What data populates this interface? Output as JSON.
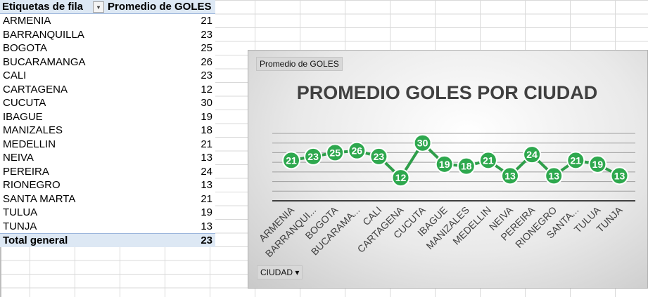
{
  "pivot": {
    "header_rows": "Etiquetas de fila",
    "header_values": "Promedio de GOLES",
    "rows": [
      {
        "label": "ARMENIA",
        "value": "21"
      },
      {
        "label": "BARRANQUILLA",
        "value": "23"
      },
      {
        "label": "BOGOTA",
        "value": "25"
      },
      {
        "label": "BUCARAMANGA",
        "value": "26"
      },
      {
        "label": "CALI",
        "value": "23"
      },
      {
        "label": "CARTAGENA",
        "value": "12"
      },
      {
        "label": "CUCUTA",
        "value": "30"
      },
      {
        "label": "IBAGUE",
        "value": "19"
      },
      {
        "label": "MANIZALES",
        "value": "18"
      },
      {
        "label": "MEDELLIN",
        "value": "21"
      },
      {
        "label": "NEIVA",
        "value": "13"
      },
      {
        "label": "PEREIRA",
        "value": "24"
      },
      {
        "label": "RIONEGRO",
        "value": "13"
      },
      {
        "label": "SANTA MARTA",
        "value": "21"
      },
      {
        "label": "TULUA",
        "value": "19"
      },
      {
        "label": "TUNJA",
        "value": "13"
      }
    ],
    "total_label": "Total general",
    "total_value": "23"
  },
  "chart": {
    "field_button": "Promedio de GOLES",
    "category_button": "CIUDAD",
    "dropdown_glyph": "▾",
    "line_color": "#2e9e4a",
    "marker_color": "#2ea84e"
  },
  "chart_data": {
    "type": "line",
    "title": "PROMEDIO GOLES POR CIUDAD",
    "categories": [
      "ARMENIA",
      "BARRANQUI...",
      "BOGOTA",
      "BUCARAMA...",
      "CALI",
      "CARTAGENA",
      "CUCUTA",
      "IBAGUE",
      "MANIZALES",
      "MEDELLIN",
      "NEIVA",
      "PEREIRA",
      "RIONEGRO",
      "SANTA...",
      "TULUA",
      "TUNJA"
    ],
    "series": [
      {
        "values": [
          21,
          23,
          25,
          26,
          23,
          12,
          30,
          19,
          18,
          21,
          13,
          24,
          13,
          21,
          19,
          13
        ]
      }
    ],
    "ylim": [
      0,
      35
    ],
    "grid": true,
    "legend": "none"
  }
}
